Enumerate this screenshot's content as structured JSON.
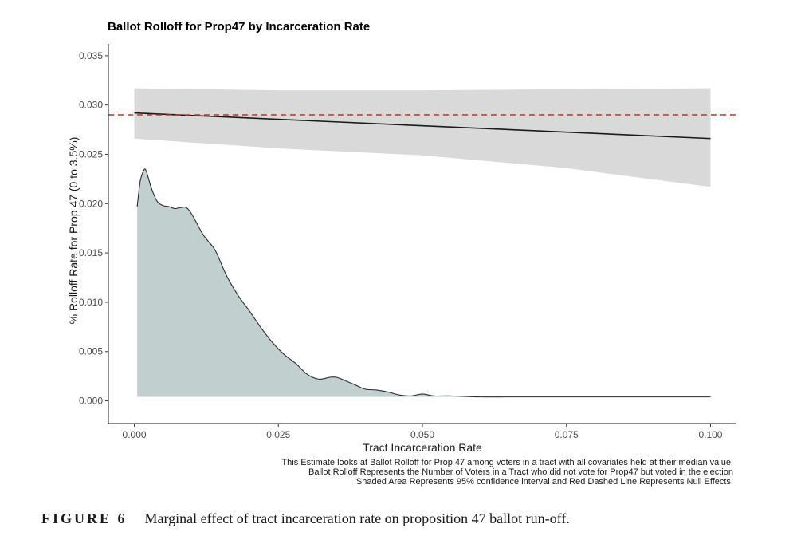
{
  "chart_data": {
    "type": "line",
    "title": "Ballot Rolloff for Prop47 by Incarceration Rate",
    "xlabel": "Tract Incarceration Rate",
    "ylabel": "% Rolloff Rate for Prop 47 (0 to 3.5%)",
    "xlim": [
      -0.0045,
      0.1045
    ],
    "ylim": [
      -0.0023,
      0.0362
    ],
    "x_ticks": [
      "0.000",
      "0.025",
      "0.050",
      "0.075",
      "0.100"
    ],
    "y_ticks": [
      "0.000",
      "0.005",
      "0.010",
      "0.015",
      "0.020",
      "0.025",
      "0.030",
      "0.035"
    ],
    "grid": false,
    "series": [
      {
        "kind": "line",
        "x": [
          0.0,
          0.1
        ],
        "y": [
          0.0292,
          0.0266
        ],
        "color": "#1a1a1a"
      },
      {
        "kind": "ribbon",
        "x": [
          0.0,
          0.025,
          0.05,
          0.075,
          0.1
        ],
        "upper": [
          0.0317,
          0.0315,
          0.0315,
          0.0316,
          0.0317
        ],
        "lower": [
          0.0266,
          0.0256,
          0.0249,
          0.0236,
          0.0217
        ],
        "color": "#d9d9d9"
      },
      {
        "kind": "density",
        "x": [
          0.0005,
          0.001,
          0.0015,
          0.002,
          0.003,
          0.004,
          0.005,
          0.006,
          0.007,
          0.008,
          0.009,
          0.01,
          0.012,
          0.014,
          0.016,
          0.018,
          0.02,
          0.022,
          0.024,
          0.026,
          0.028,
          0.03,
          0.032,
          0.034,
          0.035,
          0.036,
          0.038,
          0.04,
          0.042,
          0.044,
          0.046,
          0.048,
          0.05,
          0.052,
          0.055,
          0.06,
          0.065,
          0.07,
          0.08,
          0.09,
          0.1
        ],
        "y": [
          0.0197,
          0.0222,
          0.0232,
          0.0234,
          0.0215,
          0.0202,
          0.0198,
          0.0197,
          0.0195,
          0.0196,
          0.0196,
          0.0189,
          0.0168,
          0.0153,
          0.0127,
          0.0107,
          0.0091,
          0.0074,
          0.0059,
          0.0047,
          0.0038,
          0.0027,
          0.0022,
          0.0024,
          0.0024,
          0.0022,
          0.0017,
          0.0012,
          0.0011,
          0.0009,
          0.0006,
          0.0005,
          0.0007,
          0.0005,
          0.0005,
          0.0004,
          0.0004,
          0.0004,
          0.0004,
          0.0004,
          0.0004
        ],
        "color": "#c2cfcf",
        "baseline": 0.0004
      },
      {
        "kind": "reference_line",
        "y": 0.029,
        "style": "dashed",
        "color": "#e8201c"
      }
    ],
    "notes": [
      "This Estimate looks at Ballot Rolloff for Prop 47 among voters in a tract with all covariates held at their median value.",
      "Ballot Rolloff Represents the Number of Voters in a Tract who did not vote for Prop47 but voted in the election",
      "Shaded Area Represents 95% confidence interval and Red Dashed Line Represents Null Effects."
    ]
  },
  "figure": {
    "label": "FIGURE 6",
    "caption": "Marginal effect of tract incarceration rate on proposition 47 ballot run-off."
  }
}
